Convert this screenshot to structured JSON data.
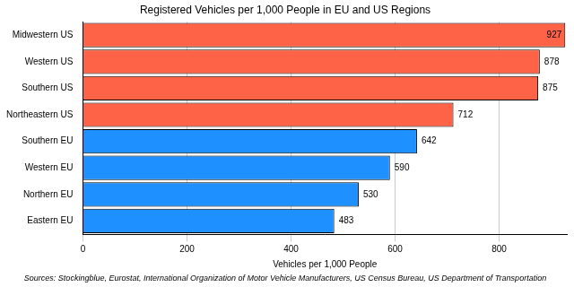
{
  "chart_data": {
    "type": "bar",
    "orientation": "horizontal",
    "title": "Registered Vehicles per 1,000 People in EU and US Regions",
    "x_label": "Vehicles per 1,000 People",
    "annotations": [
      "Sources: Stockingblue, Eurostat, International Organization of Motor Vehicle Manufacturers, US Census Bureau, US Department of Transportation"
    ],
    "categories": [
      "Midwestern US",
      "Western US",
      "Southern US",
      "Northeastern US",
      "Southern EU",
      "Western EU",
      "Northern EU",
      "Eastern EU"
    ],
    "values": [
      927,
      878,
      875,
      712,
      642,
      590,
      530,
      483
    ],
    "colors": [
      "#ff6347",
      "#ff6347",
      "#ff6347",
      "#ff6347",
      "#1e90ff",
      "#1e90ff",
      "#1e90ff",
      "#1e90ff"
    ],
    "xlim": [
      0,
      930
    ],
    "xticks": [
      0,
      200,
      400,
      600,
      800
    ],
    "grid": true,
    "data_labels": true
  }
}
